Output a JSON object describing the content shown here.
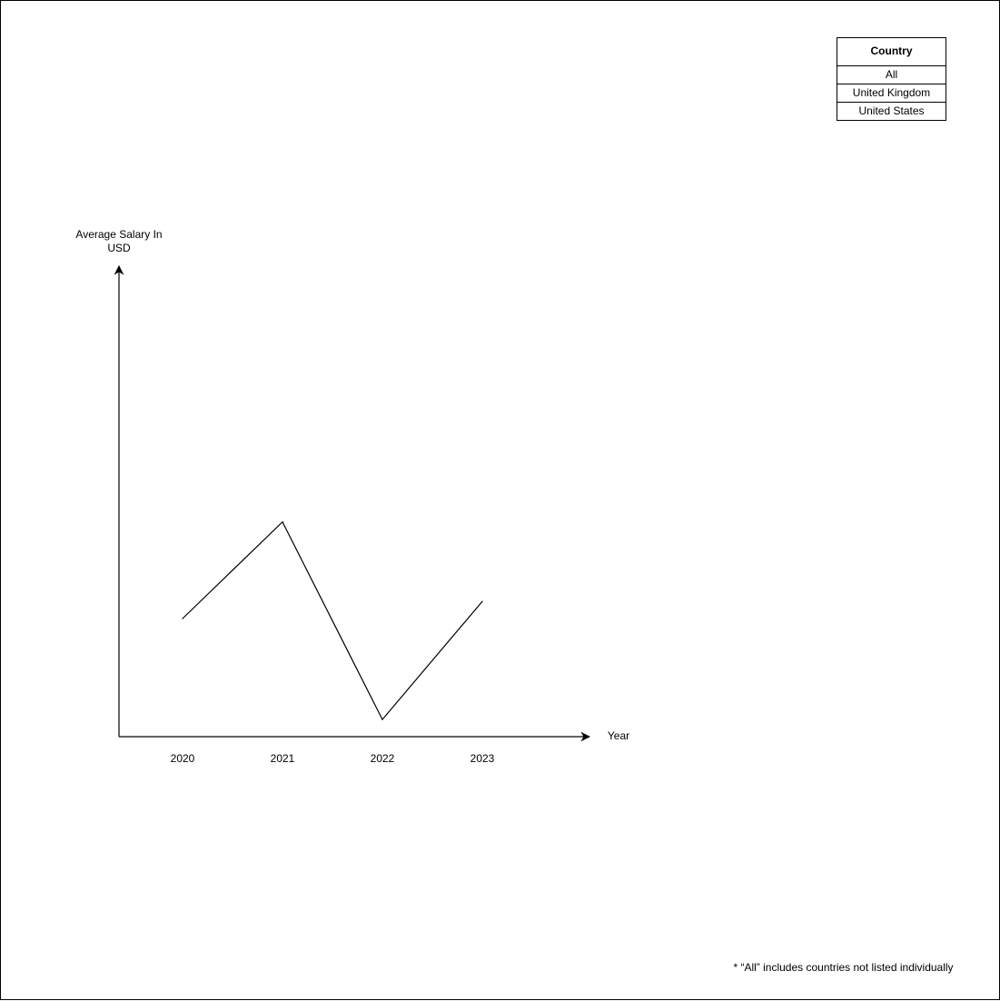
{
  "filter_panel": {
    "header": "Country",
    "options": [
      "All",
      "United Kingdom",
      "United States"
    ]
  },
  "footnote": "* “All” includes countries not listed individually",
  "chart_data": {
    "type": "line",
    "title": "",
    "xlabel": "Year",
    "ylabel": "Average Salary In\nUSD",
    "categories": [
      "2020",
      "2021",
      "2022",
      "2023"
    ],
    "series": [
      {
        "values": [
          0.55,
          1.0,
          0.08,
          0.63
        ]
      }
    ],
    "ylim": [
      0,
      2.2
    ],
    "y_ticks_shown": false,
    "grid": false,
    "colors": {
      "line": "#000000",
      "axes": "#000000"
    }
  }
}
